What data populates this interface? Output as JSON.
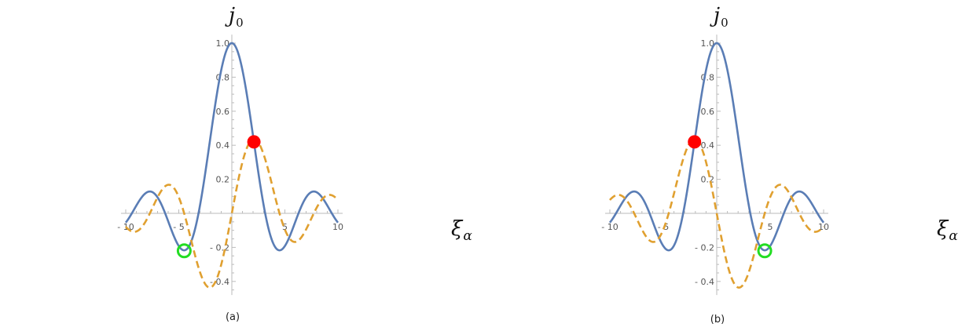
{
  "figure": {
    "panels": [
      {
        "label": "(a)"
      },
      {
        "label": "(b)"
      }
    ]
  },
  "chart_data": [
    {
      "type": "line",
      "panel_label": "(a)",
      "y_title_base": "j",
      "y_title_sub": "0",
      "x_title_base": "ξ",
      "x_title_sub": "α",
      "xlim": [
        -10,
        10
      ],
      "ylim": [
        -0.48,
        1.05
      ],
      "x_tick_labels": [
        "- 10",
        "- 5",
        "5",
        "10"
      ],
      "y_tick_labels": [
        "- 0.4",
        "- 0.2",
        "0.2",
        "0.4",
        "0.6",
        "0.8",
        "1.0"
      ],
      "series": [
        {
          "style": "solid",
          "color": "#5a7db5",
          "function": "sin(x)/x",
          "x_range": [
            -10,
            10
          ]
        },
        {
          "style": "dashed",
          "color": "#e0a030",
          "function": "(sin(x)/x^2 - cos(x)/x)",
          "x_range": [
            -10,
            10
          ]
        }
      ],
      "markers": [
        {
          "x": 2.08,
          "y": 0.42,
          "fill": "#ff0000",
          "kind": "filled"
        },
        {
          "x": -4.49,
          "y": -0.22,
          "stroke": "#22dd22",
          "kind": "ring"
        }
      ]
    },
    {
      "type": "line",
      "panel_label": "(b)",
      "y_title_base": "j",
      "y_title_sub": "0",
      "x_title_base": "ξ",
      "x_title_sub": "α",
      "xlim": [
        -10,
        10
      ],
      "ylim": [
        -0.48,
        1.05
      ],
      "x_tick_labels": [
        "- 10",
        "- 5",
        "5",
        "10"
      ],
      "y_tick_labels": [
        "- 0.4",
        "- 0.2",
        "0.2",
        "0.4",
        "0.6",
        "0.8",
        "1.0"
      ],
      "series": [
        {
          "style": "solid",
          "color": "#5a7db5",
          "function": "sin(x)/x",
          "x_range": [
            -10,
            10
          ]
        },
        {
          "style": "dashed",
          "color": "#e0a030",
          "function": "-(sin(x)/x^2 - cos(x)/x)",
          "x_range": [
            -10,
            10
          ]
        }
      ],
      "markers": [
        {
          "x": -2.08,
          "y": 0.42,
          "fill": "#ff0000",
          "kind": "filled"
        },
        {
          "x": 4.49,
          "y": -0.22,
          "stroke": "#22dd22",
          "kind": "ring"
        }
      ]
    }
  ]
}
